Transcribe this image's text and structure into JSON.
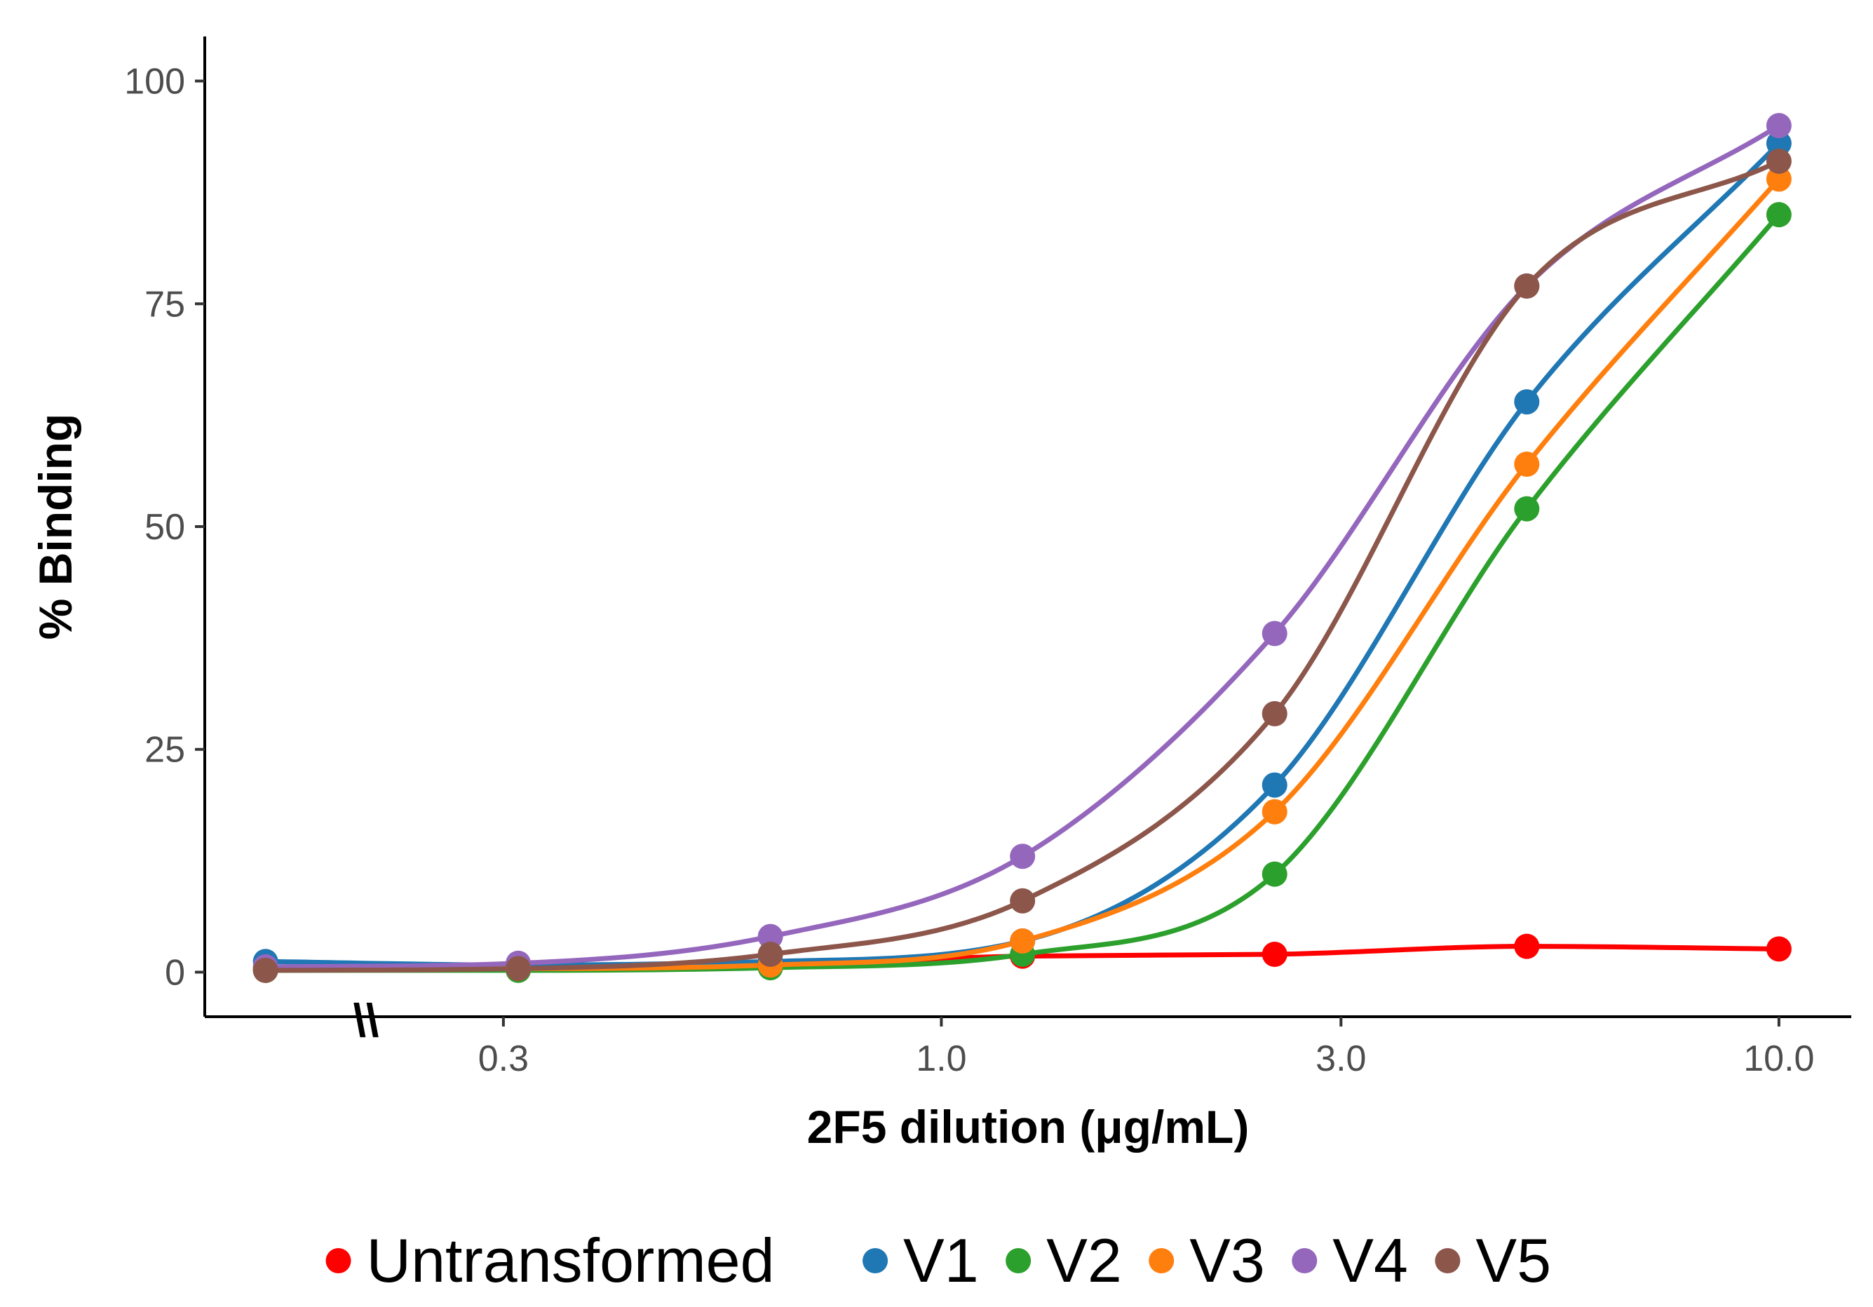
{
  "chart_data": {
    "type": "line",
    "title": "",
    "xlabel": "2F5 dilution (μg/mL)",
    "ylabel": "% Binding",
    "x_scale": "log10",
    "xlim": [
      0.132,
      12.2
    ],
    "ylim": [
      -5,
      105
    ],
    "x_ticks": [
      0.3,
      1.0,
      3.0,
      10.0
    ],
    "x_tick_labels": [
      "0.3",
      "1.0",
      "3.0",
      "10.0"
    ],
    "y_ticks": [
      0,
      25,
      50,
      75,
      100
    ],
    "y_tick_labels": [
      "0",
      "25",
      "50",
      "75",
      "100"
    ],
    "axis_break": "\\\\",
    "x_values": [
      0.156,
      0.3125,
      0.625,
      1.25,
      2.5,
      5.0,
      10.0
    ],
    "legend_position": "bottom",
    "series": [
      {
        "name": "Untransformed",
        "color": "#ff0000",
        "values": [
          0.5,
          0.5,
          0.8,
          1.8,
          2.0,
          2.9,
          2.6
        ]
      },
      {
        "name": "V1",
        "color": "#1f77b4",
        "values": [
          1.2,
          0.8,
          1.2,
          3.5,
          21,
          64,
          93
        ]
      },
      {
        "name": "V2",
        "color": "#2ca02c",
        "values": [
          0.2,
          0.2,
          0.5,
          2.0,
          11,
          52,
          85
        ]
      },
      {
        "name": "V3",
        "color": "#ff7f0e",
        "values": [
          0.4,
          0.4,
          0.8,
          3.5,
          18,
          57,
          89
        ]
      },
      {
        "name": "V4",
        "color": "#9467bd",
        "values": [
          0.6,
          1.0,
          4.0,
          13,
          38,
          77,
          95
        ]
      },
      {
        "name": "V5",
        "color": "#8c564b",
        "values": [
          0.2,
          0.4,
          2.0,
          8.0,
          29,
          77,
          91
        ]
      }
    ]
  }
}
